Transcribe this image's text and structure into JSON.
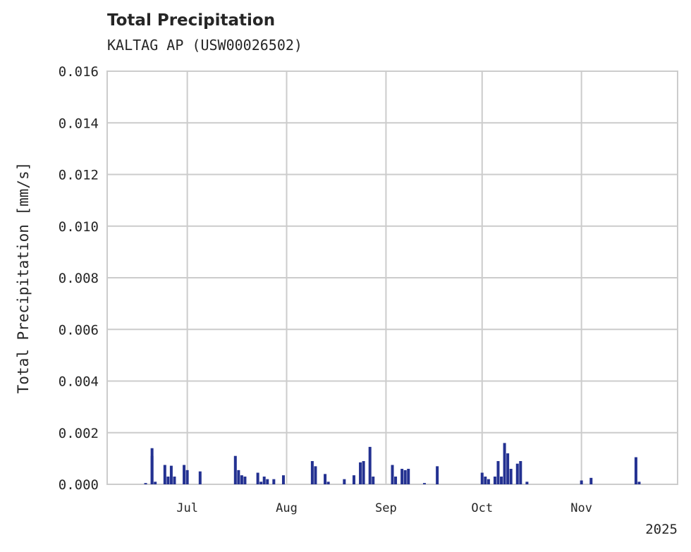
{
  "header": {
    "title": "Total Precipitation",
    "subtitle": "KALTAG AP (USW00026502)"
  },
  "axes": {
    "ylabel": "Total Precipitation [mm/s]",
    "yticks": [
      "0.000",
      "0.002",
      "0.004",
      "0.006",
      "0.008",
      "0.010",
      "0.012",
      "0.014",
      "0.016"
    ],
    "xticks": [
      "Jul",
      "Aug",
      "Sep",
      "Oct",
      "Nov"
    ],
    "year_label": "2025"
  },
  "colors": {
    "series": "#233191",
    "grid": "#cccccc",
    "text": "#262626"
  },
  "chart_data": {
    "type": "area",
    "title": "Total Precipitation",
    "subtitle": "KALTAG AP (USW00026502)",
    "xlabel": "",
    "ylabel": "Total Precipitation [mm/s]",
    "ylim": [
      0,
      0.016
    ],
    "xlim": [
      "2025-06-06",
      "2025-12-01"
    ],
    "x_tick_labels": [
      "Jul",
      "Aug",
      "Sep",
      "Oct",
      "Nov"
    ],
    "x_offset_label": "2025",
    "grid": true,
    "legend": null,
    "series": [
      {
        "name": "Total Precipitation",
        "color": "#233191",
        "points": [
          [
            "2025-06-18",
            5e-05
          ],
          [
            "2025-06-20",
            0.0011
          ],
          [
            "2025-06-20",
            0.0014
          ],
          [
            "2025-06-21",
            0.0001
          ],
          [
            "2025-06-24",
            0.00075
          ],
          [
            "2025-06-25",
            0.0003
          ],
          [
            "2025-06-26",
            0.00072
          ],
          [
            "2025-06-27",
            0.0003
          ],
          [
            "2025-06-30",
            0.00075
          ],
          [
            "2025-07-01",
            0.00055
          ],
          [
            "2025-07-05",
            0.0005
          ],
          [
            "2025-07-16",
            0.0011
          ],
          [
            "2025-07-17",
            0.00055
          ],
          [
            "2025-07-18",
            0.00035
          ],
          [
            "2025-07-19",
            0.0003
          ],
          [
            "2025-07-23",
            0.00045
          ],
          [
            "2025-07-24",
            0.0001
          ],
          [
            "2025-07-25",
            0.0003
          ],
          [
            "2025-07-26",
            0.0002
          ],
          [
            "2025-07-28",
            0.0002
          ],
          [
            "2025-07-31",
            0.00035
          ],
          [
            "2025-08-09",
            0.0009
          ],
          [
            "2025-08-10",
            0.0007
          ],
          [
            "2025-08-13",
            0.0004
          ],
          [
            "2025-08-14",
            0.0001
          ],
          [
            "2025-08-19",
            0.0002
          ],
          [
            "2025-08-22",
            0.00035
          ],
          [
            "2025-08-24",
            0.00085
          ],
          [
            "2025-08-25",
            0.0009
          ],
          [
            "2025-08-27",
            0.00145
          ],
          [
            "2025-08-28",
            0.0003
          ],
          [
            "2025-09-03",
            0.00075
          ],
          [
            "2025-09-04",
            0.0003
          ],
          [
            "2025-09-06",
            0.0006
          ],
          [
            "2025-09-07",
            0.00055
          ],
          [
            "2025-09-08",
            0.0006
          ],
          [
            "2025-09-13",
            5e-05
          ],
          [
            "2025-09-17",
            0.0007
          ],
          [
            "2025-10-01",
            0.00045
          ],
          [
            "2025-10-02",
            0.0003
          ],
          [
            "2025-10-03",
            0.0002
          ],
          [
            "2025-10-05",
            0.0003
          ],
          [
            "2025-10-06",
            0.0009
          ],
          [
            "2025-10-07",
            0.0003
          ],
          [
            "2025-10-08",
            0.0016
          ],
          [
            "2025-10-09",
            0.0012
          ],
          [
            "2025-10-10",
            0.0006
          ],
          [
            "2025-10-12",
            0.0008
          ],
          [
            "2025-10-13",
            0.0009
          ],
          [
            "2025-10-15",
            0.0001
          ],
          [
            "2025-11-01",
            0.00015
          ],
          [
            "2025-11-04",
            0.00025
          ],
          [
            "2025-11-18",
            0.00105
          ],
          [
            "2025-11-19",
            0.0001
          ]
        ]
      }
    ]
  }
}
